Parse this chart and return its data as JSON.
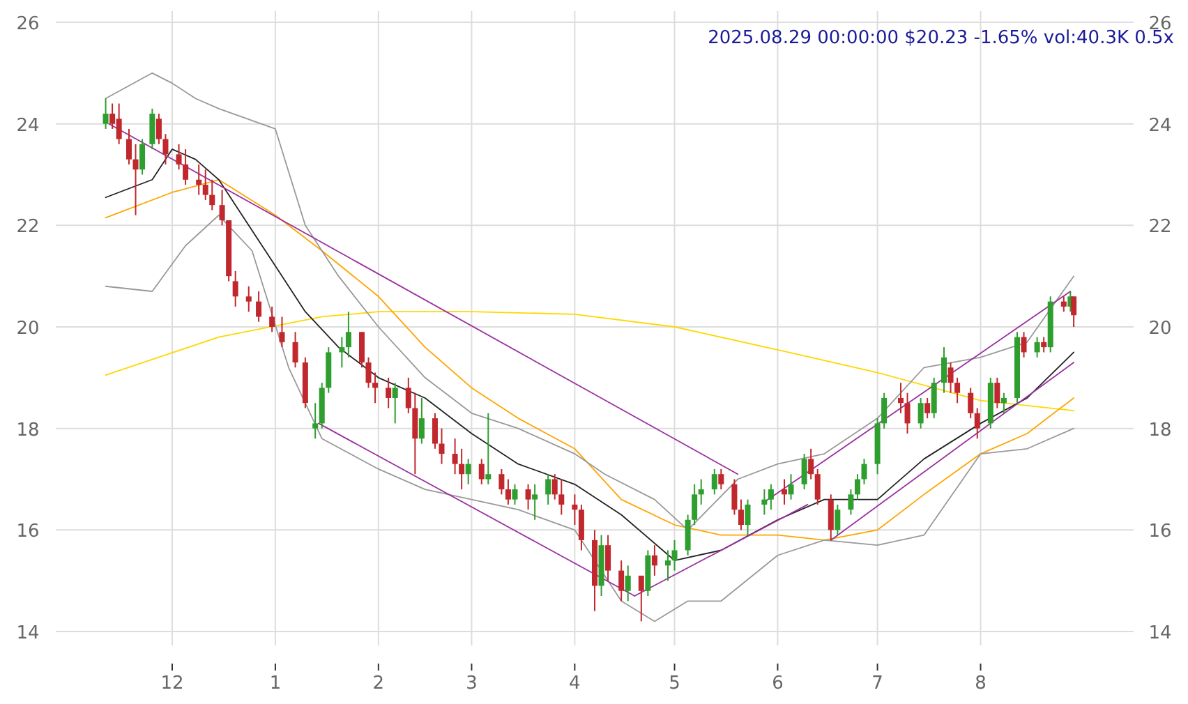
{
  "chart_data": {
    "type": "candlestick",
    "x": [
      "2024-11-11",
      "2024-11-13",
      "2024-11-15",
      "2024-11-18",
      "2024-11-20",
      "2024-11-22",
      "2024-11-25",
      "2024-11-27",
      "2024-11-29",
      "2024-12-03",
      "2024-12-05",
      "2024-12-09",
      "2024-12-11",
      "2024-12-13",
      "2024-12-16",
      "2024-12-18",
      "2024-12-20",
      "2024-12-24",
      "2024-12-27",
      "2024-12-31",
      "2025-01-03",
      "2025-01-07",
      "2025-01-10",
      "2025-01-13",
      "2025-01-15",
      "2025-01-17",
      "2025-01-21",
      "2025-01-23",
      "2025-01-27",
      "2025-01-29",
      "2025-01-31",
      "2025-02-04",
      "2025-02-06",
      "2025-02-10",
      "2025-02-12",
      "2025-02-14",
      "2025-02-18",
      "2025-02-20",
      "2025-02-24",
      "2025-02-26",
      "2025-02-28",
      "2025-03-04",
      "2025-03-06",
      "2025-03-10",
      "2025-03-12",
      "2025-03-14",
      "2025-03-18",
      "2025-03-20",
      "2025-03-24",
      "2025-03-26",
      "2025-03-28",
      "2025-04-01",
      "2025-04-03",
      "2025-04-07",
      "2025-04-09",
      "2025-04-11",
      "2025-04-15",
      "2025-04-17",
      "2025-04-21",
      "2025-04-23",
      "2025-04-25",
      "2025-04-29",
      "2025-05-01",
      "2025-05-05",
      "2025-05-07",
      "2025-05-09",
      "2025-05-13",
      "2025-05-15",
      "2025-05-19",
      "2025-05-21",
      "2025-05-23",
      "2025-05-28",
      "2025-05-30",
      "2025-06-03",
      "2025-06-05",
      "2025-06-09",
      "2025-06-11",
      "2025-06-13",
      "2025-06-17",
      "2025-06-19",
      "2025-06-23",
      "2025-06-25",
      "2025-06-27",
      "2025-07-01",
      "2025-07-03",
      "2025-07-08",
      "2025-07-10",
      "2025-07-14",
      "2025-07-16",
      "2025-07-18",
      "2025-07-21",
      "2025-07-23",
      "2025-07-25",
      "2025-07-29",
      "2025-07-31",
      "2025-08-04",
      "2025-08-06",
      "2025-08-08",
      "2025-08-12",
      "2025-08-14",
      "2025-08-18",
      "2025-08-20",
      "2025-08-22",
      "2025-08-26",
      "2025-08-28",
      "2025-08-29"
    ],
    "ohlc": [
      [
        24.0,
        24.5,
        23.9,
        24.2
      ],
      [
        24.2,
        24.4,
        23.9,
        24.0
      ],
      [
        24.1,
        24.4,
        23.6,
        23.7
      ],
      [
        23.7,
        23.9,
        23.2,
        23.3
      ],
      [
        23.3,
        23.6,
        22.2,
        23.1
      ],
      [
        23.1,
        23.7,
        23.0,
        23.6
      ],
      [
        23.6,
        24.3,
        23.5,
        24.2
      ],
      [
        24.1,
        24.2,
        23.6,
        23.7
      ],
      [
        23.7,
        23.8,
        23.2,
        23.4
      ],
      [
        23.4,
        23.6,
        23.1,
        23.2
      ],
      [
        23.2,
        23.5,
        22.8,
        22.9
      ],
      [
        22.9,
        23.2,
        22.6,
        22.8
      ],
      [
        22.8,
        23.1,
        22.5,
        22.6
      ],
      [
        22.6,
        22.9,
        22.3,
        22.4
      ],
      [
        22.4,
        22.7,
        22.0,
        22.1
      ],
      [
        22.1,
        22.1,
        20.9,
        21.0
      ],
      [
        20.9,
        21.1,
        20.4,
        20.6
      ],
      [
        20.6,
        20.8,
        20.3,
        20.5
      ],
      [
        20.5,
        20.7,
        20.1,
        20.2
      ],
      [
        20.2,
        20.4,
        19.9,
        20.0
      ],
      [
        19.9,
        20.2,
        19.6,
        19.7
      ],
      [
        19.7,
        19.9,
        19.2,
        19.3
      ],
      [
        19.3,
        19.4,
        18.4,
        18.5
      ],
      [
        18.0,
        18.5,
        17.8,
        18.1
      ],
      [
        18.1,
        18.9,
        18.0,
        18.8
      ],
      [
        18.8,
        19.6,
        18.7,
        19.5
      ],
      [
        19.5,
        19.8,
        19.2,
        19.6
      ],
      [
        19.6,
        20.3,
        19.4,
        19.9
      ],
      [
        19.9,
        19.9,
        19.2,
        19.3
      ],
      [
        19.3,
        19.4,
        18.8,
        18.9
      ],
      [
        18.9,
        19.1,
        18.5,
        18.8
      ],
      [
        18.8,
        19.0,
        18.4,
        18.6
      ],
      [
        18.6,
        18.9,
        18.1,
        18.8
      ],
      [
        18.8,
        19.0,
        18.3,
        18.4
      ],
      [
        18.4,
        18.7,
        17.1,
        17.8
      ],
      [
        17.8,
        18.6,
        17.7,
        18.2
      ],
      [
        18.2,
        18.3,
        17.6,
        17.7
      ],
      [
        17.7,
        18.0,
        17.3,
        17.5
      ],
      [
        17.5,
        17.8,
        17.1,
        17.3
      ],
      [
        17.3,
        17.6,
        16.8,
        17.1
      ],
      [
        17.1,
        17.4,
        16.9,
        17.3
      ],
      [
        17.3,
        17.4,
        16.9,
        17.0
      ],
      [
        17.0,
        18.3,
        16.9,
        17.1
      ],
      [
        17.1,
        17.2,
        16.7,
        16.8
      ],
      [
        16.8,
        17.0,
        16.5,
        16.6
      ],
      [
        16.6,
        16.9,
        16.5,
        16.8
      ],
      [
        16.8,
        16.9,
        16.4,
        16.6
      ],
      [
        16.6,
        16.9,
        16.2,
        16.7
      ],
      [
        16.7,
        17.1,
        16.5,
        17.0
      ],
      [
        17.0,
        17.1,
        16.6,
        16.7
      ],
      [
        16.7,
        17.0,
        16.3,
        16.5
      ],
      [
        16.5,
        16.7,
        16.1,
        16.4
      ],
      [
        16.4,
        16.5,
        15.6,
        15.8
      ],
      [
        15.8,
        16.0,
        14.4,
        14.9
      ],
      [
        14.9,
        15.9,
        14.7,
        15.7
      ],
      [
        15.7,
        15.9,
        15.0,
        15.2
      ],
      [
        15.2,
        15.4,
        14.6,
        14.8
      ],
      [
        14.8,
        15.3,
        14.6,
        15.1
      ],
      [
        15.1,
        15.1,
        14.2,
        14.8
      ],
      [
        14.8,
        15.6,
        14.7,
        15.5
      ],
      [
        15.5,
        15.7,
        15.1,
        15.3
      ],
      [
        15.3,
        15.6,
        15.0,
        15.4
      ],
      [
        15.4,
        15.8,
        15.2,
        15.6
      ],
      [
        15.6,
        16.3,
        15.5,
        16.2
      ],
      [
        16.2,
        16.9,
        16.1,
        16.7
      ],
      [
        16.7,
        17.0,
        16.5,
        16.8
      ],
      [
        16.8,
        17.2,
        16.7,
        17.1
      ],
      [
        17.1,
        17.2,
        16.8,
        16.9
      ],
      [
        16.9,
        17.0,
        16.3,
        16.4
      ],
      [
        16.4,
        16.6,
        16.0,
        16.1
      ],
      [
        16.1,
        16.6,
        15.9,
        16.5
      ],
      [
        16.5,
        16.8,
        16.3,
        16.6
      ],
      [
        16.6,
        16.9,
        16.4,
        16.8
      ],
      [
        16.8,
        17.0,
        16.5,
        16.7
      ],
      [
        16.7,
        17.1,
        16.6,
        16.9
      ],
      [
        16.9,
        17.5,
        16.8,
        17.4
      ],
      [
        17.4,
        17.6,
        17.0,
        17.1
      ],
      [
        17.1,
        17.2,
        16.5,
        16.6
      ],
      [
        16.6,
        16.7,
        15.8,
        16.0
      ],
      [
        16.0,
        16.5,
        15.9,
        16.4
      ],
      [
        16.4,
        16.8,
        16.3,
        16.7
      ],
      [
        16.7,
        17.1,
        16.6,
        17.0
      ],
      [
        17.0,
        17.4,
        16.9,
        17.3
      ],
      [
        17.3,
        18.2,
        17.1,
        18.1
      ],
      [
        18.1,
        18.7,
        18.0,
        18.6
      ],
      [
        18.6,
        18.9,
        18.3,
        18.5
      ],
      [
        18.5,
        18.7,
        17.9,
        18.1
      ],
      [
        18.1,
        18.6,
        18.0,
        18.5
      ],
      [
        18.5,
        18.6,
        18.2,
        18.3
      ],
      [
        18.3,
        19.0,
        18.2,
        18.9
      ],
      [
        18.9,
        19.6,
        18.7,
        19.4
      ],
      [
        19.2,
        19.3,
        18.7,
        18.9
      ],
      [
        18.9,
        19.0,
        18.5,
        18.7
      ],
      [
        18.7,
        18.8,
        18.2,
        18.3
      ],
      [
        18.3,
        18.4,
        17.8,
        18.0
      ],
      [
        18.1,
        19.0,
        18.0,
        18.9
      ],
      [
        18.9,
        19.0,
        18.4,
        18.5
      ],
      [
        18.5,
        18.7,
        18.3,
        18.6
      ],
      [
        18.6,
        19.9,
        18.5,
        19.8
      ],
      [
        19.8,
        19.9,
        19.4,
        19.5
      ],
      [
        19.5,
        19.8,
        19.4,
        19.7
      ],
      [
        19.7,
        19.8,
        19.5,
        19.6
      ],
      [
        19.6,
        20.6,
        19.5,
        20.5
      ],
      [
        20.5,
        20.6,
        20.3,
        20.4
      ],
      [
        20.4,
        20.7,
        20.3,
        20.6
      ],
      [
        20.6,
        20.6,
        20.0,
        20.23
      ]
    ],
    "colors": [
      "#2e9e2e",
      "#c0282d",
      "#c0282d",
      "#c0282d",
      "#c0282d",
      "#2e9e2e",
      "#2e9e2e",
      "#c0282d",
      "#c0282d",
      "#c0282d",
      "#c0282d",
      "#c0282d",
      "#c0282d",
      "#c0282d",
      "#c0282d",
      "#c0282d",
      "#c0282d",
      "#c0282d",
      "#c0282d",
      "#c0282d",
      "#c0282d",
      "#c0282d",
      "#c0282d",
      "#2e9e2e",
      "#2e9e2e",
      "#2e9e2e",
      "#2e9e2e",
      "#2e9e2e",
      "#c0282d",
      "#c0282d",
      "#c0282d",
      "#c0282d",
      "#2e9e2e",
      "#c0282d",
      "#c0282d",
      "#2e9e2e",
      "#c0282d",
      "#c0282d",
      "#c0282d",
      "#c0282d",
      "#2e9e2e",
      "#c0282d",
      "#2e9e2e",
      "#c0282d",
      "#c0282d",
      "#2e9e2e",
      "#c0282d",
      "#2e9e2e",
      "#2e9e2e",
      "#c0282d",
      "#c0282d",
      "#c0282d",
      "#c0282d",
      "#c0282d",
      "#2e9e2e",
      "#c0282d",
      "#c0282d",
      "#2e9e2e",
      "#c0282d",
      "#2e9e2e",
      "#c0282d",
      "#2e9e2e",
      "#2e9e2e",
      "#2e9e2e",
      "#2e9e2e",
      "#2e9e2e",
      "#2e9e2e",
      "#c0282d",
      "#c0282d",
      "#c0282d",
      "#2e9e2e",
      "#2e9e2e",
      "#2e9e2e",
      "#c0282d",
      "#2e9e2e",
      "#2e9e2e",
      "#c0282d",
      "#c0282d",
      "#c0282d",
      "#2e9e2e",
      "#2e9e2e",
      "#2e9e2e",
      "#2e9e2e",
      "#2e9e2e",
      "#2e9e2e",
      "#c0282d",
      "#c0282d",
      "#2e9e2e",
      "#c0282d",
      "#2e9e2e",
      "#2e9e2e",
      "#c0282d",
      "#c0282d",
      "#c0282d",
      "#c0282d",
      "#2e9e2e",
      "#c0282d",
      "#2e9e2e",
      "#2e9e2e",
      "#c0282d",
      "#2e9e2e",
      "#c0282d",
      "#2e9e2e",
      "#c0282d",
      "#2e9e2e",
      "#c0282d"
    ],
    "series": [
      {
        "type": "line",
        "color": "#ffd700",
        "x": [
          "2024-11-11",
          "2024-12-15",
          "2025-01-15",
          "2025-02-01",
          "2025-03-01",
          "2025-04-01",
          "2025-05-01",
          "2025-06-01",
          "2025-07-01",
          "2025-08-01",
          "2025-08-29"
        ],
        "values": [
          19.05,
          19.8,
          20.2,
          20.3,
          20.3,
          20.25,
          20.0,
          19.55,
          19.1,
          18.55,
          18.35
        ]
      },
      {
        "type": "line",
        "color": "#ffa500",
        "x": [
          "2024-11-11",
          "2024-12-01",
          "2024-12-15",
          "2025-01-01",
          "2025-01-15",
          "2025-02-01",
          "2025-02-15",
          "2025-03-01",
          "2025-03-15",
          "2025-04-01",
          "2025-04-15",
          "2025-05-01",
          "2025-05-15",
          "2025-06-01",
          "2025-06-15",
          "2025-07-01",
          "2025-07-15",
          "2025-08-01",
          "2025-08-15",
          "2025-08-29"
        ],
        "values": [
          22.15,
          22.65,
          22.9,
          22.2,
          21.5,
          20.6,
          19.6,
          18.8,
          18.2,
          17.6,
          16.6,
          16.1,
          15.9,
          15.9,
          15.8,
          16.0,
          16.7,
          17.5,
          17.9,
          18.6
        ]
      },
      {
        "type": "line",
        "color": "#999999",
        "x": [
          "2024-11-11",
          "2024-11-25",
          "2024-12-01",
          "2024-12-08",
          "2024-12-15",
          "2025-01-01",
          "2025-01-10",
          "2025-01-20",
          "2025-02-01",
          "2025-02-15",
          "2025-03-01",
          "2025-03-15",
          "2025-04-01",
          "2025-04-10",
          "2025-04-25",
          "2025-05-05",
          "2025-05-20",
          "2025-06-01",
          "2025-06-15",
          "2025-07-01",
          "2025-07-15",
          "2025-08-01",
          "2025-08-15",
          "2025-08-29"
        ],
        "values": [
          24.5,
          25.0,
          24.8,
          24.5,
          24.3,
          23.9,
          22.0,
          21.0,
          20.0,
          19.0,
          18.3,
          18.0,
          17.5,
          17.1,
          16.6,
          16.0,
          17.0,
          17.3,
          17.5,
          18.2,
          19.2,
          19.4,
          19.7,
          21.0
        ]
      },
      {
        "type": "line",
        "color": "#999999",
        "x": [
          "2024-11-11",
          "2024-11-25",
          "2024-12-05",
          "2024-12-15",
          "2024-12-25",
          "2025-01-05",
          "2025-01-15",
          "2025-02-01",
          "2025-02-15",
          "2025-03-01",
          "2025-03-15",
          "2025-04-01",
          "2025-04-15",
          "2025-04-25",
          "2025-05-05",
          "2025-05-15",
          "2025-06-01",
          "2025-06-15",
          "2025-07-01",
          "2025-07-15",
          "2025-08-01",
          "2025-08-15",
          "2025-08-29"
        ],
        "values": [
          20.8,
          20.7,
          21.6,
          22.2,
          21.5,
          19.2,
          17.8,
          17.2,
          16.8,
          16.6,
          16.4,
          16.0,
          14.6,
          14.2,
          14.6,
          14.6,
          15.5,
          15.8,
          15.7,
          15.9,
          17.5,
          17.6,
          18.0
        ]
      },
      {
        "type": "line",
        "color": "#222222",
        "x": [
          "2024-11-11",
          "2024-11-25",
          "2024-12-01",
          "2024-12-08",
          "2024-12-15",
          "2024-12-22",
          "2025-01-01",
          "2025-01-10",
          "2025-01-20",
          "2025-02-01",
          "2025-02-15",
          "2025-03-01",
          "2025-03-15",
          "2025-04-01",
          "2025-04-15",
          "2025-05-01",
          "2025-05-15",
          "2025-06-01",
          "2025-06-15",
          "2025-07-01",
          "2025-07-15",
          "2025-08-01",
          "2025-08-15",
          "2025-08-29"
        ],
        "values": [
          22.55,
          22.9,
          23.5,
          23.3,
          22.9,
          22.2,
          21.2,
          20.3,
          19.6,
          19.0,
          18.6,
          17.9,
          17.3,
          16.9,
          16.3,
          15.4,
          15.6,
          16.2,
          16.6,
          16.6,
          17.4,
          18.1,
          18.6,
          19.5
        ]
      },
      {
        "type": "line",
        "color": "#9b30a0",
        "x": [
          "2024-11-12",
          "2025-05-20"
        ],
        "values": [
          24.0,
          17.1
        ]
      },
      {
        "type": "line",
        "color": "#9b30a0",
        "x": [
          "2025-01-14",
          "2025-04-19"
        ],
        "values": [
          18.1,
          14.7
        ]
      },
      {
        "type": "line",
        "color": "#9b30a0",
        "x": [
          "2025-04-19",
          "2025-06-10"
        ],
        "values": [
          14.7,
          16.5
        ]
      },
      {
        "type": "line",
        "color": "#9b30a0",
        "x": [
          "2025-05-28",
          "2025-08-28"
        ],
        "values": [
          16.55,
          20.7
        ]
      },
      {
        "type": "line",
        "color": "#9b30a0",
        "x": [
          "2025-06-17",
          "2025-08-29"
        ],
        "values": [
          15.8,
          19.3
        ]
      }
    ],
    "xlim": [
      "2024-10-27",
      "2025-09-16"
    ],
    "xticks": [
      {
        "value": "2024-12-01",
        "label": "12"
      },
      {
        "value": "2025-01-01",
        "label": "1"
      },
      {
        "value": "2025-02-01",
        "label": "2"
      },
      {
        "value": "2025-03-01",
        "label": "3"
      },
      {
        "value": "2025-04-01",
        "label": "4"
      },
      {
        "value": "2025-05-01",
        "label": "5"
      },
      {
        "value": "2025-06-01",
        "label": "6"
      },
      {
        "value": "2025-07-01",
        "label": "7"
      },
      {
        "value": "2025-08-01",
        "label": "8"
      }
    ],
    "ylim": [
      14,
      26
    ],
    "yticks": [
      14,
      16,
      18,
      20,
      22,
      24,
      26
    ],
    "y2lim": [
      14,
      26
    ],
    "y2ticks": [
      14,
      16,
      18,
      20,
      22,
      24,
      26
    ],
    "grid": true,
    "annotations": [
      "2025.08.29 00:00:00 $20.23 -1.65% vol:40.3K 0.5x"
    ]
  }
}
